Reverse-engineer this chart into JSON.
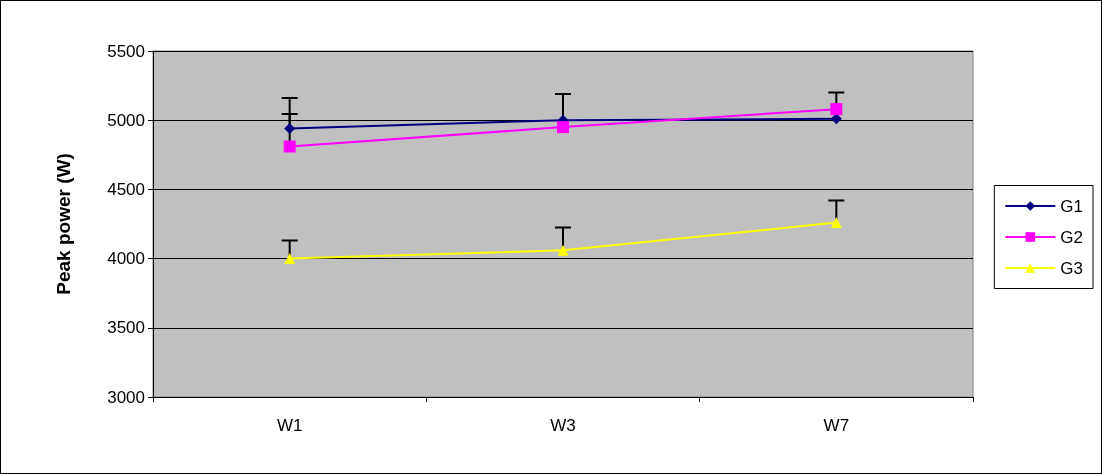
{
  "chart_data": {
    "type": "line",
    "ylabel": "Peak power (W)",
    "categories": [
      "W1",
      "W3",
      "W7"
    ],
    "series": [
      {
        "name": "G1",
        "color": "#000080",
        "marker": "diamond",
        "values": [
          4940,
          5000,
          5010
        ],
        "errors": [
          [
            4940,
            5160
          ],
          [
            5000,
            5190
          ],
          null
        ]
      },
      {
        "name": "G2",
        "color": "#ff00ff",
        "marker": "square",
        "values": [
          4810,
          4950,
          5080
        ],
        "errors": [
          [
            4810,
            5045
          ],
          [
            4950,
            5190
          ],
          [
            5080,
            5200
          ]
        ]
      },
      {
        "name": "G3",
        "color": "#ffff00",
        "marker": "triangle",
        "values": [
          4000,
          4060,
          4260
        ],
        "errors": [
          [
            4000,
            4130
          ],
          [
            4060,
            4225
          ],
          [
            4260,
            4420
          ]
        ]
      }
    ],
    "ylim": [
      3000,
      5500
    ],
    "yticks": [
      {
        "value": 3000,
        "label": "3000"
      },
      {
        "value": 3500,
        "label": "3500"
      },
      {
        "value": 4000,
        "label": "4000"
      },
      {
        "value": 4500,
        "label": "4500"
      },
      {
        "value": 5000,
        "label": "5000"
      },
      {
        "value": 5500,
        "label": "5500"
      }
    ],
    "grid": "y",
    "legend": "right"
  }
}
